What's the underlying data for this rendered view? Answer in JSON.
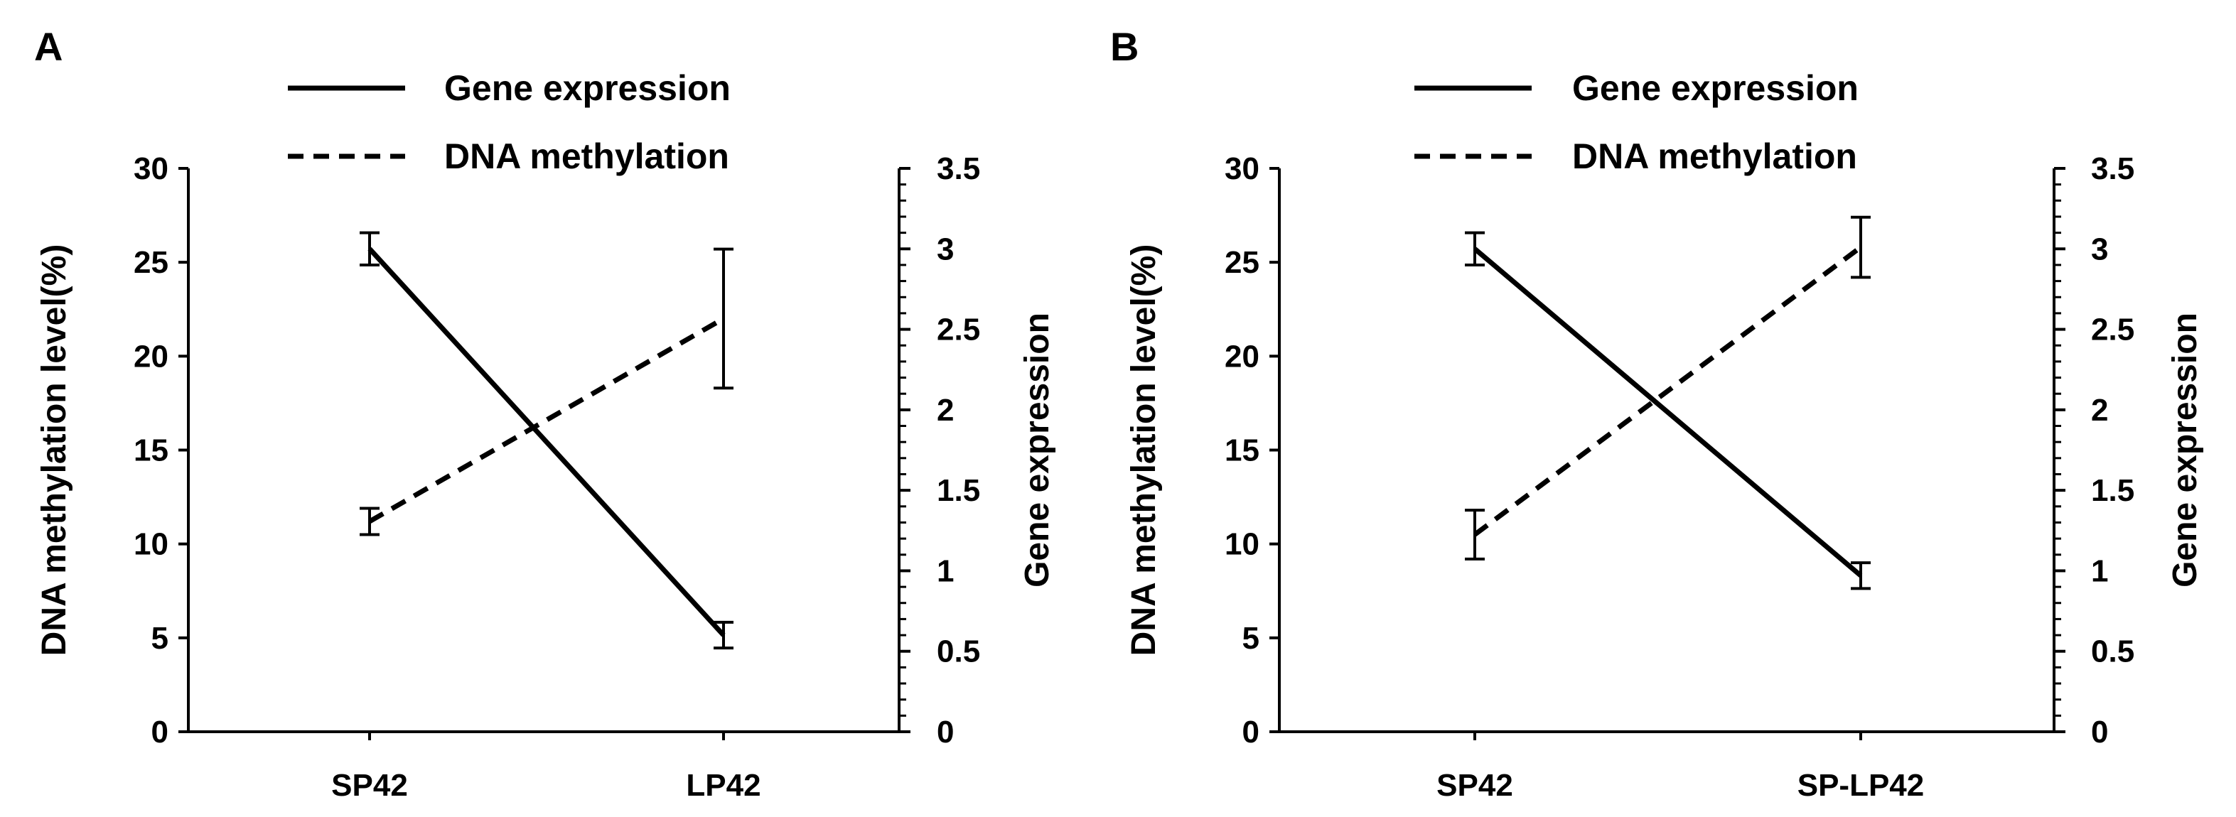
{
  "colors": {
    "line": "#000000",
    "background": "#ffffff"
  },
  "chart_data": [
    {
      "panel": "A",
      "type": "line",
      "categories": [
        "SP42",
        "LP42"
      ],
      "left_axis": {
        "label": "DNA methylation level(%)",
        "lim": [
          0,
          30
        ],
        "ticks": [
          "0",
          "5",
          "10",
          "15",
          "20",
          "25",
          "30"
        ]
      },
      "right_axis": {
        "label": "Gene expression",
        "lim": [
          0,
          3.5
        ],
        "ticks": [
          "0",
          "0.5",
          "1",
          "1.5",
          "2",
          "2.5",
          "3",
          "3.5"
        ]
      },
      "legend_position": "top",
      "series": [
        {
          "name": "Gene expression",
          "axis": "right",
          "style": "solid",
          "values": [
            3.0,
            0.6
          ],
          "errors": [
            0.1,
            0.08
          ]
        },
        {
          "name": "DNA methylation",
          "axis": "left",
          "style": "dashed",
          "values": [
            11.2,
            22.0
          ],
          "errors": [
            0.7,
            3.7
          ]
        }
      ]
    },
    {
      "panel": "B",
      "type": "line",
      "categories": [
        "SP42",
        "SP-LP42"
      ],
      "left_axis": {
        "label": "DNA methylation level(%)",
        "lim": [
          0,
          30
        ],
        "ticks": [
          "0",
          "5",
          "10",
          "15",
          "20",
          "25",
          "30"
        ]
      },
      "right_axis": {
        "label": "Gene expression",
        "lim": [
          0,
          3.5
        ],
        "ticks": [
          "0",
          "0.5",
          "1",
          "1.5",
          "2",
          "2.5",
          "3",
          "3.5"
        ]
      },
      "legend_position": "top",
      "series": [
        {
          "name": "Gene expression",
          "axis": "right",
          "style": "solid",
          "values": [
            3.0,
            0.97
          ],
          "errors": [
            0.1,
            0.08
          ]
        },
        {
          "name": "DNA methylation",
          "axis": "left",
          "style": "dashed",
          "values": [
            10.5,
            25.8
          ],
          "errors": [
            1.3,
            1.6
          ]
        }
      ]
    }
  ]
}
